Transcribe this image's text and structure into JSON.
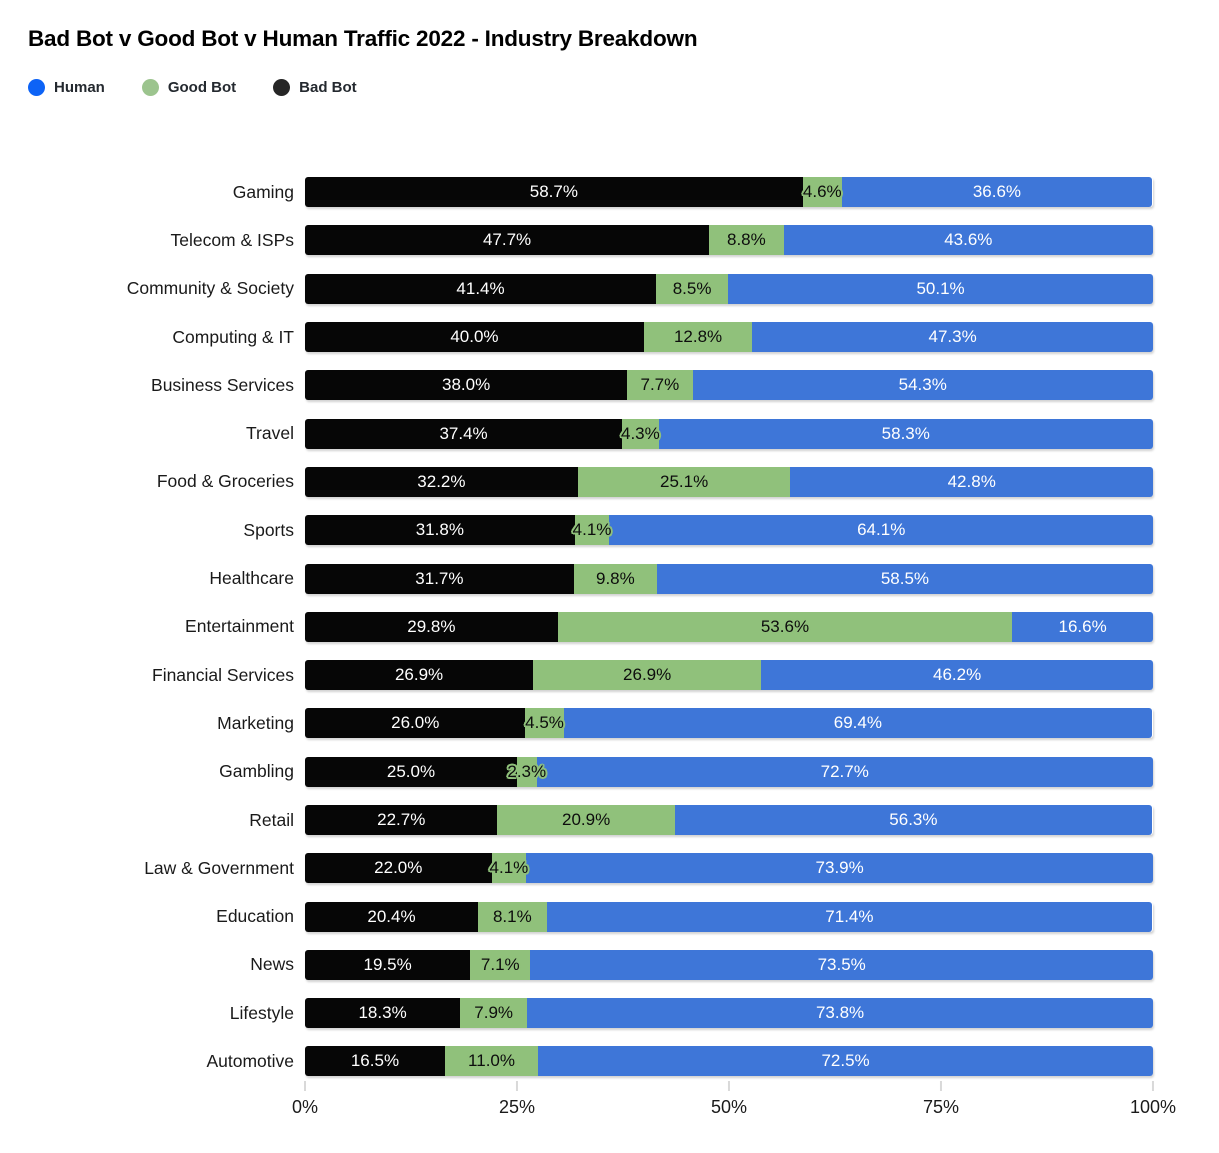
{
  "title": "Bad Bot v Good Bot v Human Traffic 2022 - Industry Breakdown",
  "legend": {
    "items": [
      {
        "label": "Human",
        "color": "#0d63f6"
      },
      {
        "label": "Good Bot",
        "color": "#9cc48e"
      },
      {
        "label": "Bad Bot",
        "color": "#262626"
      }
    ]
  },
  "chart_data": {
    "type": "bar",
    "orientation": "horizontal",
    "stacked": true,
    "title": "Bad Bot v Good Bot v Human Traffic 2022 - Industry Breakdown",
    "legend_position": "top-left",
    "grid": false,
    "xlim": [
      0,
      100
    ],
    "x_ticks": [
      "0%",
      "25%",
      "50%",
      "75%",
      "100%"
    ],
    "x_tick_positions": [
      0,
      25,
      50,
      75,
      100
    ],
    "value_label_format": "one_decimal_percent",
    "categories": [
      "Gaming",
      "Telecom & ISPs",
      "Community & Society",
      "Computing & IT",
      "Business Services",
      "Travel",
      "Food & Groceries",
      "Sports",
      "Healthcare",
      "Entertainment",
      "Financial Services",
      "Marketing",
      "Gambling",
      "Retail",
      "Law & Government",
      "Education",
      "News",
      "Lifestyle",
      "Automotive"
    ],
    "series": [
      {
        "name": "Bad Bot",
        "color": "#060606",
        "label_color": "#ffffff",
        "label_halo": false,
        "values": [
          58.7,
          47.7,
          41.4,
          40.0,
          38.0,
          37.4,
          32.2,
          31.8,
          31.7,
          29.8,
          26.9,
          26.0,
          25.0,
          22.7,
          22.0,
          20.4,
          19.5,
          18.3,
          16.5
        ]
      },
      {
        "name": "Good Bot",
        "color": "#90c17b",
        "label_color": "#0d0d0d",
        "label_halo": true,
        "values": [
          4.6,
          8.8,
          8.5,
          12.8,
          7.7,
          4.3,
          25.1,
          4.1,
          9.8,
          53.6,
          26.9,
          4.5,
          2.3,
          20.9,
          4.1,
          8.1,
          7.1,
          7.9,
          11.0
        ]
      },
      {
        "name": "Human",
        "color": "#3e76d8",
        "label_color": "#ffffff",
        "label_halo": false,
        "values": [
          36.6,
          43.6,
          50.1,
          47.3,
          54.3,
          58.3,
          42.8,
          64.1,
          58.5,
          16.6,
          46.2,
          69.4,
          72.7,
          56.3,
          73.9,
          71.4,
          73.5,
          73.8,
          72.5
        ]
      }
    ]
  }
}
